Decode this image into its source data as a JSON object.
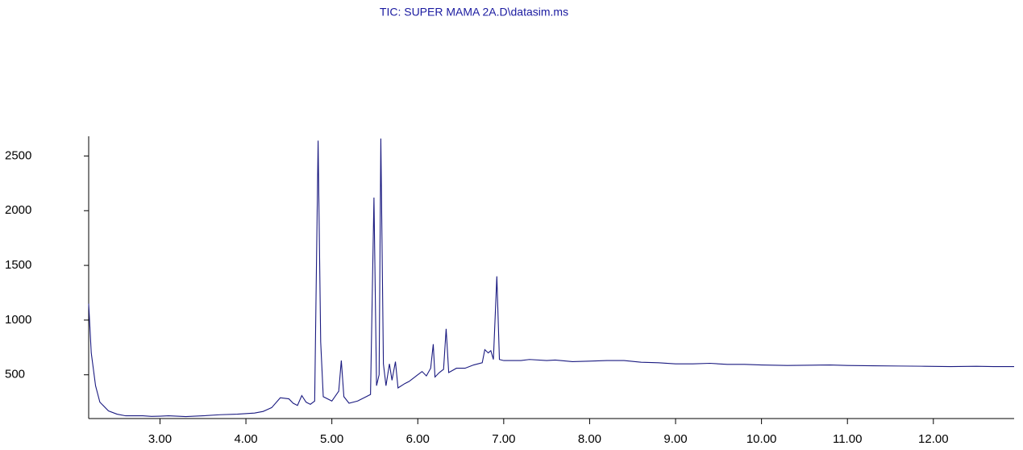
{
  "chart_data": {
    "type": "line",
    "title": "TIC: SUPER MAMA 2A.D\\datasim.ms",
    "color": "#1a1a80",
    "x": [
      2.17,
      2.2,
      2.25,
      2.3,
      2.4,
      2.5,
      2.6,
      2.8,
      2.9,
      3.0,
      3.1,
      3.3,
      3.5,
      3.7,
      3.9,
      4.1,
      4.2,
      4.3,
      4.4,
      4.5,
      4.55,
      4.6,
      4.65,
      4.7,
      4.75,
      4.8,
      4.84,
      4.87,
      4.9,
      5.0,
      5.08,
      5.11,
      5.14,
      5.2,
      5.3,
      5.4,
      5.45,
      5.49,
      5.52,
      5.55,
      5.57,
      5.6,
      5.63,
      5.67,
      5.7,
      5.74,
      5.77,
      5.85,
      5.9,
      5.95,
      6.0,
      6.05,
      6.1,
      6.15,
      6.18,
      6.2,
      6.25,
      6.3,
      6.33,
      6.36,
      6.45,
      6.55,
      6.65,
      6.75,
      6.78,
      6.82,
      6.85,
      6.88,
      6.92,
      6.95,
      7.0,
      7.2,
      7.3,
      7.5,
      7.6,
      7.8,
      8.0,
      8.2,
      8.4,
      8.6,
      8.8,
      9.0,
      9.2,
      9.4,
      9.6,
      9.8,
      10.0,
      10.3,
      10.6,
      10.8,
      11.0,
      11.3,
      11.6,
      11.9,
      12.2,
      12.5,
      12.7,
      12.94
    ],
    "y": [
      1150,
      700,
      400,
      250,
      170,
      140,
      125,
      125,
      120,
      122,
      125,
      118,
      125,
      135,
      140,
      150,
      165,
      200,
      290,
      280,
      240,
      220,
      310,
      250,
      230,
      260,
      2640,
      800,
      300,
      260,
      350,
      630,
      300,
      240,
      260,
      300,
      320,
      2120,
      400,
      500,
      2660,
      600,
      400,
      600,
      450,
      620,
      380,
      420,
      440,
      470,
      500,
      530,
      490,
      560,
      780,
      480,
      520,
      550,
      920,
      520,
      560,
      560,
      590,
      610,
      730,
      700,
      720,
      640,
      1400,
      640,
      630,
      630,
      640,
      630,
      635,
      620,
      625,
      630,
      630,
      615,
      610,
      600,
      600,
      605,
      595,
      595,
      590,
      585,
      588,
      590,
      585,
      582,
      580,
      578,
      575,
      578,
      575,
      575
    ],
    "xlim": [
      2.17,
      12.94
    ],
    "ylim": [
      100,
      2680
    ],
    "xticks": [
      {
        "value": 3,
        "label": "3.00"
      },
      {
        "value": 4,
        "label": "4.00"
      },
      {
        "value": 5,
        "label": "5.00"
      },
      {
        "value": 6,
        "label": "6.00"
      },
      {
        "value": 7,
        "label": "7.00"
      },
      {
        "value": 8,
        "label": "8.00"
      },
      {
        "value": 9,
        "label": "9.00"
      },
      {
        "value": 10,
        "label": "10.00"
      },
      {
        "value": 11,
        "label": "11.00"
      },
      {
        "value": 12,
        "label": "12.00"
      }
    ],
    "yticks": [
      500,
      1000,
      1500,
      2000,
      2500
    ]
  }
}
